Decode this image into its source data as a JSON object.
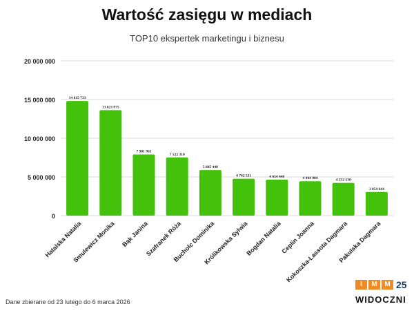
{
  "chart_data": {
    "type": "bar",
    "title": "Wartość zasięgu w mediach",
    "subtitle": "TOP10 ekspertek marketingu i biznesu",
    "categories": [
      "Hatalska Natalia",
      "Smulewicz Monika",
      "Bąk Janina",
      "Szafranek Róża",
      "Bucholc Dominika",
      "Królikowska Sylwia",
      "Bogdan Natalia",
      "Ceplin Joanna",
      "Kokoszka-Lassota Dagmara",
      "Pakulska Dagmara"
    ],
    "values": [
      14815733,
      13623975,
      7901961,
      7522310,
      5885448,
      4762531,
      4654440,
      4444984,
      4232130,
      3054644
    ],
    "value_labels": [
      "14 815 733",
      "13 623 975",
      "7 901 961",
      "7 522 310",
      "5 885 448",
      "4 762 531",
      "4 654 440",
      "4 444 984",
      "4 232 130",
      "3 054 644"
    ],
    "yticks": [
      0,
      5000000,
      10000000,
      15000000,
      20000000
    ],
    "ytick_labels": [
      "0",
      "5 000 000",
      "10 000 000",
      "15 000 000",
      "20 000 000"
    ],
    "ylim": [
      0,
      20000000
    ],
    "grid": true,
    "bar_color": "#44c10a"
  },
  "footer": "Dane zbierane od 23 lutego do 6 marca 2026",
  "logo": {
    "imm": [
      "I",
      "M",
      "M"
    ],
    "years": "25",
    "brand": "WIDOCZNI"
  }
}
